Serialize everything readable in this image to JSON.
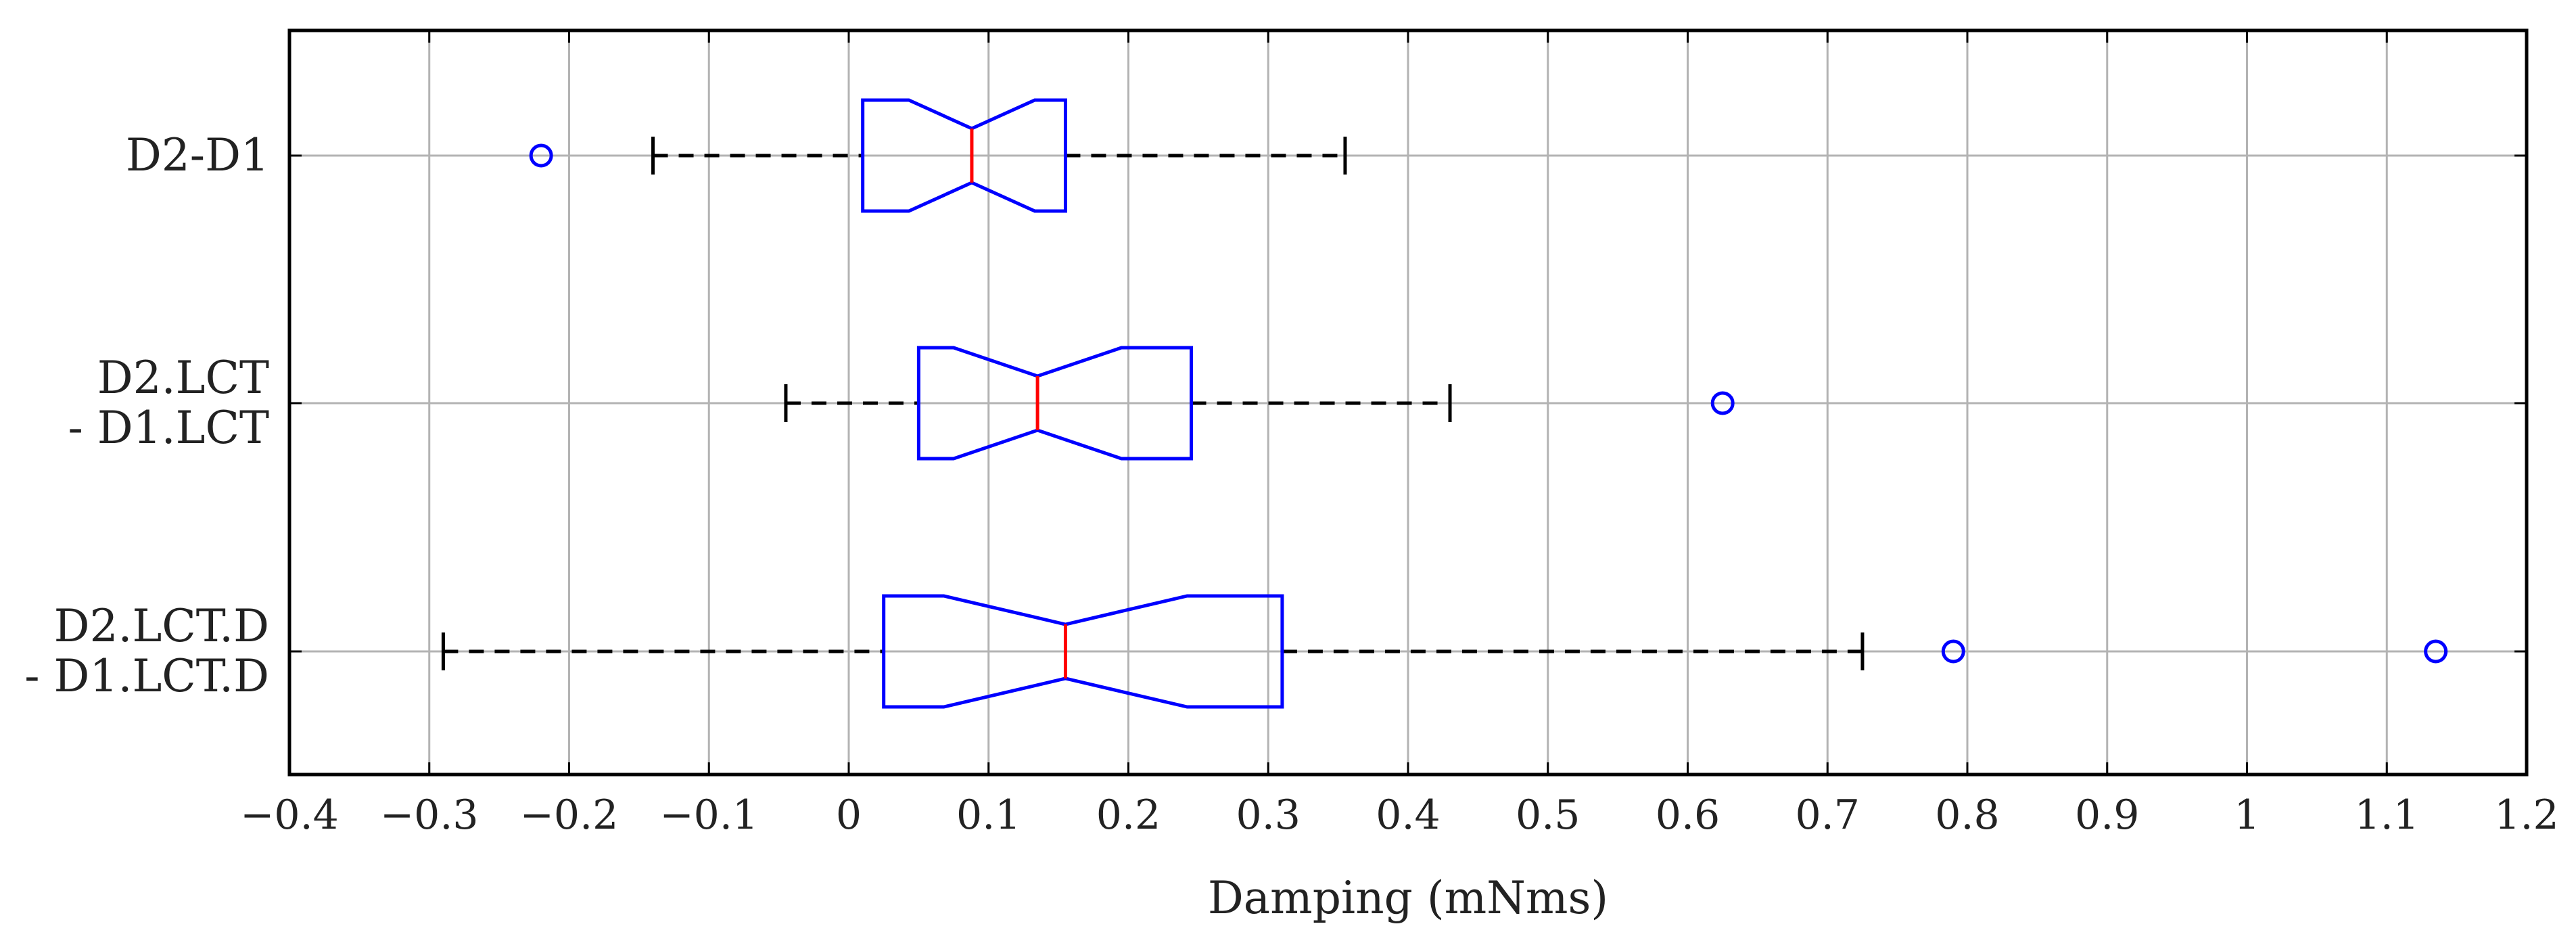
{
  "chart_data": {
    "type": "boxplot",
    "orientation": "horizontal",
    "categories": [
      {
        "lines": [
          "D2-D1"
        ]
      },
      {
        "lines": [
          "D2.LCT",
          "- D1.LCT"
        ]
      },
      {
        "lines": [
          "D2.LCT.D",
          "- D1.LCT.D"
        ]
      }
    ],
    "boxes": [
      {
        "whisker_low": -0.14,
        "q1": 0.01,
        "notch_low": 0.043,
        "median": 0.088,
        "notch_high": 0.133,
        "q3": 0.155,
        "whisker_high": 0.355,
        "outliers": [
          -0.22
        ]
      },
      {
        "whisker_low": -0.045,
        "q1": 0.05,
        "notch_low": 0.075,
        "median": 0.135,
        "notch_high": 0.195,
        "q3": 0.245,
        "whisker_high": 0.43,
        "outliers": [
          0.625
        ]
      },
      {
        "whisker_low": -0.29,
        "q1": 0.025,
        "notch_low": 0.068,
        "median": 0.155,
        "notch_high": 0.242,
        "q3": 0.31,
        "whisker_high": 0.725,
        "outliers": [
          0.79,
          1.135
        ]
      }
    ],
    "x_ticks": [
      -0.4,
      -0.3,
      -0.2,
      -0.1,
      0,
      0.1,
      0.2,
      0.3,
      0.4,
      0.5,
      0.6,
      0.7,
      0.8,
      0.9,
      1,
      1.1,
      1.2
    ],
    "x_tick_labels": [
      "−0.4",
      "−0.3",
      "−0.2",
      "−0.1",
      "0",
      "0.1",
      "0.2",
      "0.3",
      "0.4",
      "0.5",
      "0.6",
      "0.7",
      "0.8",
      "0.9",
      "1",
      "1.1",
      "1.2"
    ],
    "xlim": [
      -0.4,
      1.2
    ],
    "xlabel": "Damping (mNms)",
    "grid": true,
    "colors": {
      "box": "#0000ff",
      "median": "#ff0000",
      "whisker": "#000000",
      "outlier": "#0000ff",
      "grid": "#b3b3b3",
      "frame": "#000000"
    }
  }
}
